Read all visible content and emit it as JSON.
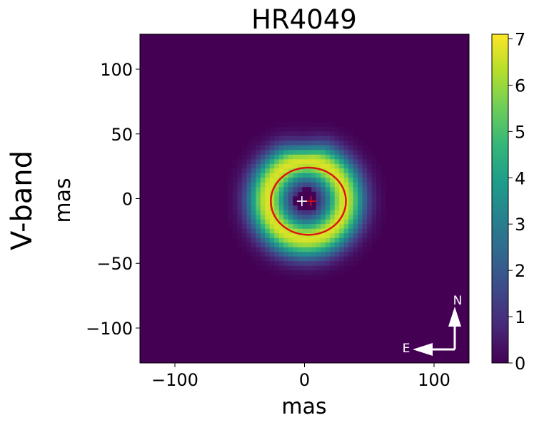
{
  "chart_data": {
    "type": "heatmap",
    "title": "HR4049",
    "row_label": "V-band",
    "xlabel": "mas",
    "ylabel": "mas",
    "xlim": [
      -127,
      127
    ],
    "ylim": [
      -127,
      127
    ],
    "xticks": [
      -100,
      0,
      100
    ],
    "xtick_labels": [
      "−100",
      "0",
      "100"
    ],
    "yticks": [
      -100,
      -50,
      0,
      50,
      100
    ],
    "ytick_labels": [
      "−100",
      "−50",
      "0",
      "50",
      "100"
    ],
    "colorbar": {
      "min": 0,
      "max": 7.1,
      "ticks": [
        0,
        1,
        2,
        3,
        4,
        5,
        6,
        7
      ],
      "tick_labels": [
        "0",
        "1",
        "2",
        "3",
        "4",
        "5",
        "6",
        "7"
      ],
      "colormap": "viridis"
    },
    "grid": false,
    "emission_model": {
      "center_mas": [
        2,
        -2
      ],
      "ring_radius_mas": 30,
      "ring_width_mas": 15,
      "peak_value": 6.7,
      "inner_hole_radius_mas": 9,
      "box_halfwidth_mas": 58,
      "notch_center_mas": [
        0,
        52
      ],
      "notch_radius_mas": 22,
      "pixel_size_mas": 3.6
    },
    "annotations": {
      "ellipse": {
        "center_mas": [
          3,
          -2
        ],
        "semi_axes_mas": [
          29,
          26
        ],
        "color": "#dd1111"
      },
      "white_cross_mas": [
        -2,
        -2
      ],
      "red_cross_mas": [
        5,
        -2
      ],
      "compass": {
        "north_label": "N",
        "east_label": "E"
      }
    }
  },
  "colors": {
    "viridis": [
      "#440154",
      "#482878",
      "#3e4989",
      "#31688e",
      "#26828e",
      "#1f9e89",
      "#35b779",
      "#6ece58",
      "#b5de2b",
      "#fde725"
    ]
  }
}
